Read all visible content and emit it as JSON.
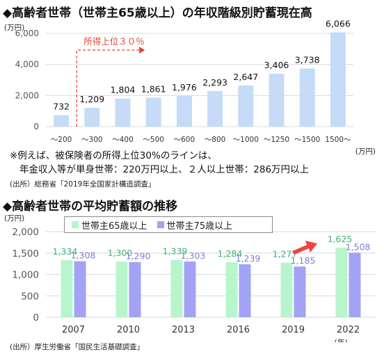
{
  "chart_data": [
    {
      "type": "bar",
      "title": "◆高齢者世帯（世帯主65歳以上）の年収階級別貯蓄現在高",
      "yunit": "(万円)",
      "xunit": "(万円)",
      "categories": [
        "～200",
        "～300",
        "～400",
        "～500",
        "～600",
        "～800",
        "～1000",
        "～1250",
        "～1500",
        "1500～"
      ],
      "values": [
        732,
        1209,
        1804,
        1861,
        1976,
        2293,
        2647,
        3406,
        3738,
        6066
      ],
      "value_labels": [
        "732",
        "1,209",
        "1,804",
        "1,861",
        "1,976",
        "2,293",
        "2,647",
        "3,406",
        "3,738",
        "6,066"
      ],
      "ylim": [
        0,
        6000
      ],
      "yticks": [
        0,
        2000,
        4000,
        6000
      ],
      "ytick_labels": [
        "0",
        "2,000",
        "4,000",
        "6,000"
      ],
      "grid": true,
      "bar_color": "#c5dbf7",
      "annotation": "所得上位３０％",
      "annotation_color": "#e8412c"
    },
    {
      "type": "bar",
      "title": "◆高齢者世帯の平均貯蓄額の推移",
      "yunit": "(万円)",
      "xunit": "(年)",
      "categories": [
        "2007",
        "2010",
        "2013",
        "2016",
        "2019",
        "2022"
      ],
      "series": [
        {
          "name": "世帯主65歳以上",
          "color": "#b8f5cc",
          "label_color": "#3cb371",
          "values": [
            1334,
            1300,
            1339,
            1284,
            1277,
            1625
          ],
          "value_labels": [
            "1,334",
            "1,300",
            "1,339",
            "1,284",
            "1,277",
            "1,625"
          ]
        },
        {
          "name": "世帯主75歳以上",
          "color": "#a2a3f5",
          "label_color": "#7b7fd0",
          "values": [
            1308,
            1290,
            1303,
            1239,
            1185,
            1508
          ],
          "value_labels": [
            "1,308",
            "1,290",
            "1,303",
            "1,239",
            "1,185",
            "1,508"
          ]
        }
      ],
      "ylim": [
        0,
        2000
      ],
      "yticks": [
        0,
        500,
        1000,
        1500,
        2000
      ],
      "ytick_labels": [
        "0",
        "500",
        "1,000",
        "1,500",
        "2,000"
      ],
      "grid": true,
      "legend": "top",
      "arrow_color": "#ee4444"
    }
  ],
  "notes": {
    "line1": "※例えば、被保険者の所得上位30%のラインは、",
    "line2": "年金収入等が単身世帯：220万円以上、２人以上世帯：286万円以上",
    "source1": "(出所）総務省「2019年全国家計構造調査」",
    "source2": "(出所）厚生労働省「国民生活基礎調査」"
  }
}
